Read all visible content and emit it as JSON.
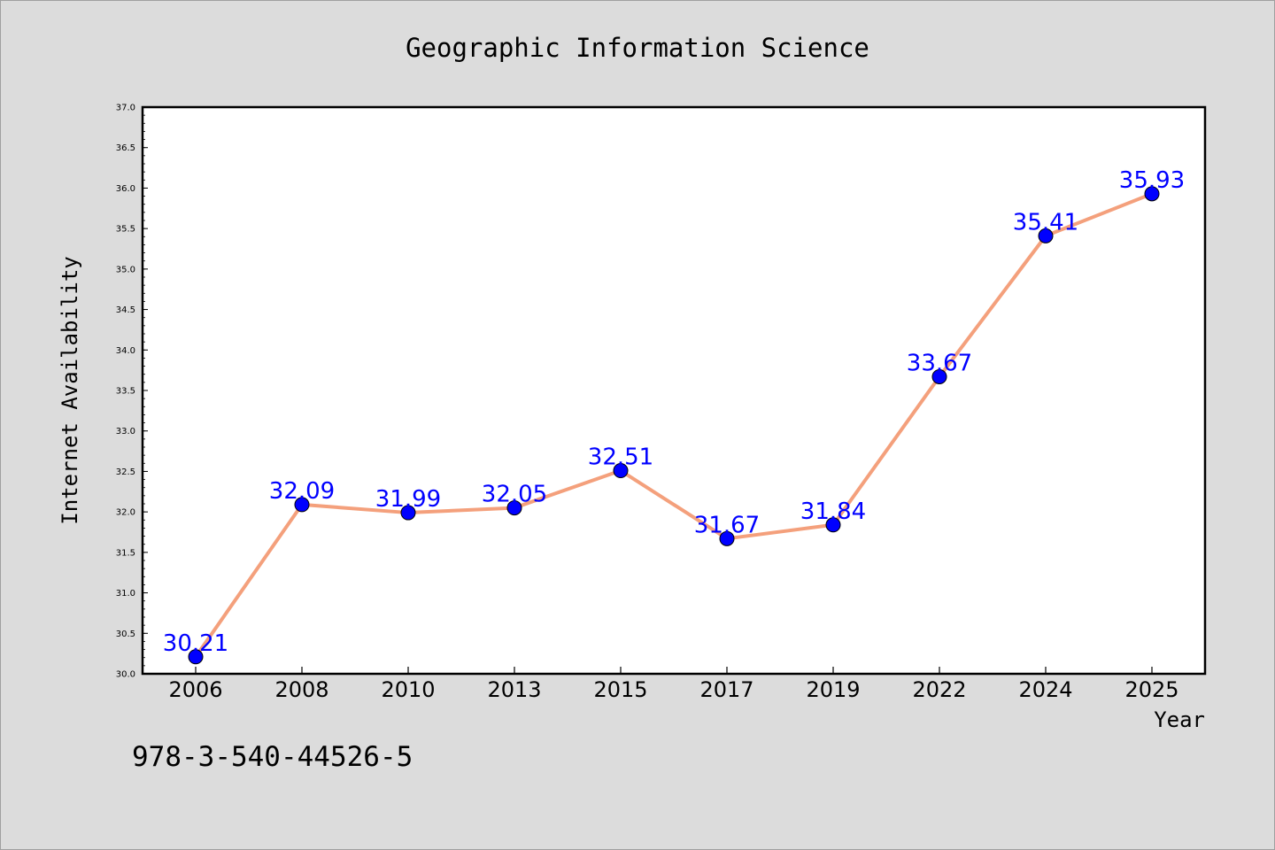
{
  "chart_data": {
    "type": "line",
    "title": "Geographic Information Science",
    "xlabel": "Year",
    "ylabel": "Internet Availability",
    "categories": [
      "2006",
      "2008",
      "2010",
      "2013",
      "2015",
      "2017",
      "2019",
      "2022",
      "2024",
      "2025"
    ],
    "series": [
      {
        "values": [
          30.21,
          32.09,
          31.99,
          32.05,
          32.51,
          31.67,
          31.84,
          33.67,
          35.41,
          35.93
        ],
        "data_labels": [
          "30.21",
          "32.09",
          "31.99",
          "32.05",
          "32.51",
          "31.67",
          "31.84",
          "33.67",
          "35.41",
          "35.93"
        ],
        "line_color": "#f4a07c",
        "marker_color": "#0000ff"
      }
    ],
    "ylim": [
      30.0,
      37.0
    ],
    "y_ticks": [
      "30.0",
      "30.5",
      "31.0",
      "31.5",
      "32.0",
      "32.5",
      "33.0",
      "33.5",
      "34.0",
      "34.5",
      "35.0",
      "35.5",
      "36.0",
      "36.5",
      "37.0"
    ],
    "grid": false,
    "legend": "none"
  },
  "footer": {
    "text": "978-3-540-44526-5"
  },
  "colors": {
    "background": "#dcdcdc",
    "plot_background": "#ffffff",
    "line": "#f4a07c",
    "marker": "#0000ff",
    "label": "#0000ff"
  }
}
